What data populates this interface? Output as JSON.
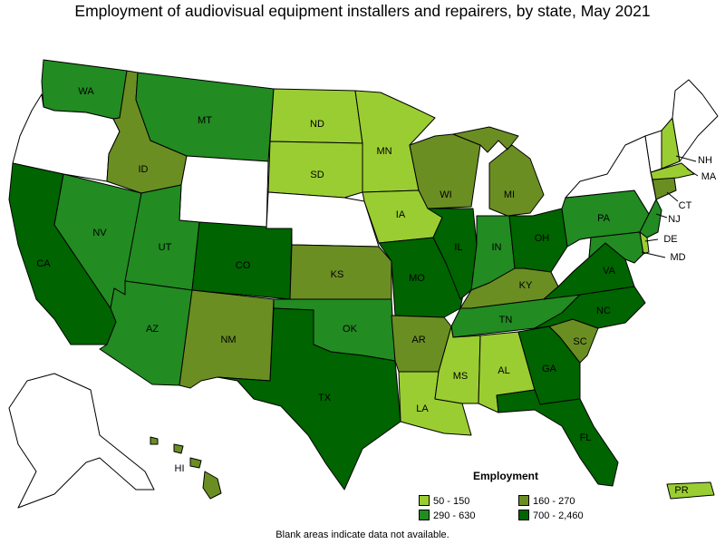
{
  "title": "Employment of audiovisual equipment installers and repairers, by state, May 2021",
  "legend": {
    "title": "Employment",
    "items": [
      {
        "label": "50 - 150",
        "color": "#9acd32"
      },
      {
        "label": "160 - 270",
        "color": "#6b8e23"
      },
      {
        "label": "290 - 630",
        "color": "#228b22"
      },
      {
        "label": "700 - 2,460",
        "color": "#006400"
      }
    ]
  },
  "footnote": "Blank areas indicate data not available.",
  "colors": {
    "no_data": "#ffffff",
    "50 - 150": "#9acd32",
    "160 - 270": "#6b8e23",
    "290 - 630": "#228b22",
    "700 - 2,460": "#006400"
  },
  "states": {
    "WA": {
      "label": "WA",
      "class": "290 - 630"
    },
    "OR": {
      "label": "",
      "class": "no_data"
    },
    "CA": {
      "label": "CA",
      "class": "700 - 2,460"
    },
    "NV": {
      "label": "NV",
      "class": "290 - 630"
    },
    "ID": {
      "label": "ID",
      "class": "160 - 270"
    },
    "MT": {
      "label": "MT",
      "class": "290 - 630"
    },
    "WY": {
      "label": "",
      "class": "no_data"
    },
    "UT": {
      "label": "UT",
      "class": "290 - 630"
    },
    "AZ": {
      "label": "AZ",
      "class": "290 - 630"
    },
    "CO": {
      "label": "CO",
      "class": "700 - 2,460"
    },
    "NM": {
      "label": "NM",
      "class": "160 - 270"
    },
    "ND": {
      "label": "ND",
      "class": "50 - 150"
    },
    "SD": {
      "label": "SD",
      "class": "50 - 150"
    },
    "NE": {
      "label": "",
      "class": "no_data"
    },
    "KS": {
      "label": "KS",
      "class": "160 - 270"
    },
    "OK": {
      "label": "OK",
      "class": "290 - 630"
    },
    "TX": {
      "label": "TX",
      "class": "700 - 2,460"
    },
    "MN": {
      "label": "MN",
      "class": "50 - 150"
    },
    "IA": {
      "label": "IA",
      "class": "50 - 150"
    },
    "MO": {
      "label": "MO",
      "class": "700 - 2,460"
    },
    "AR": {
      "label": "AR",
      "class": "160 - 270"
    },
    "LA": {
      "label": "LA",
      "class": "50 - 150"
    },
    "WI": {
      "label": "WI",
      "class": "160 - 270"
    },
    "IL": {
      "label": "IL",
      "class": "700 - 2,460"
    },
    "MI": {
      "label": "MI",
      "class": "160 - 270"
    },
    "IN": {
      "label": "IN",
      "class": "290 - 630"
    },
    "OH": {
      "label": "OH",
      "class": "700 - 2,460"
    },
    "KY": {
      "label": "KY",
      "class": "160 - 270"
    },
    "TN": {
      "label": "TN",
      "class": "290 - 630"
    },
    "MS": {
      "label": "MS",
      "class": "50 - 150"
    },
    "AL": {
      "label": "AL",
      "class": "50 - 150"
    },
    "GA": {
      "label": "GA",
      "class": "700 - 2,460"
    },
    "FL": {
      "label": "FL",
      "class": "700 - 2,460"
    },
    "SC": {
      "label": "SC",
      "class": "160 - 270"
    },
    "NC": {
      "label": "NC",
      "class": "700 - 2,460"
    },
    "VA": {
      "label": "VA",
      "class": "700 - 2,460"
    },
    "WV": {
      "label": "",
      "class": "no_data"
    },
    "PA": {
      "label": "PA",
      "class": "290 - 630"
    },
    "NY": {
      "label": "",
      "class": "no_data"
    },
    "MD": {
      "label": "MD",
      "class": "290 - 630"
    },
    "DE": {
      "label": "DE",
      "class": "50 - 150"
    },
    "NJ": {
      "label": "NJ",
      "class": "290 - 630"
    },
    "CT": {
      "label": "CT",
      "class": "160 - 270"
    },
    "MA": {
      "label": "MA",
      "class": "50 - 150"
    },
    "NH": {
      "label": "NH",
      "class": "50 - 150"
    },
    "VT": {
      "label": "",
      "class": "no_data"
    },
    "ME": {
      "label": "",
      "class": "no_data"
    },
    "AK": {
      "label": "",
      "class": "no_data"
    },
    "HI": {
      "label": "HI",
      "class": "160 - 270"
    },
    "PR": {
      "label": "PR",
      "class": "50 - 150"
    }
  }
}
